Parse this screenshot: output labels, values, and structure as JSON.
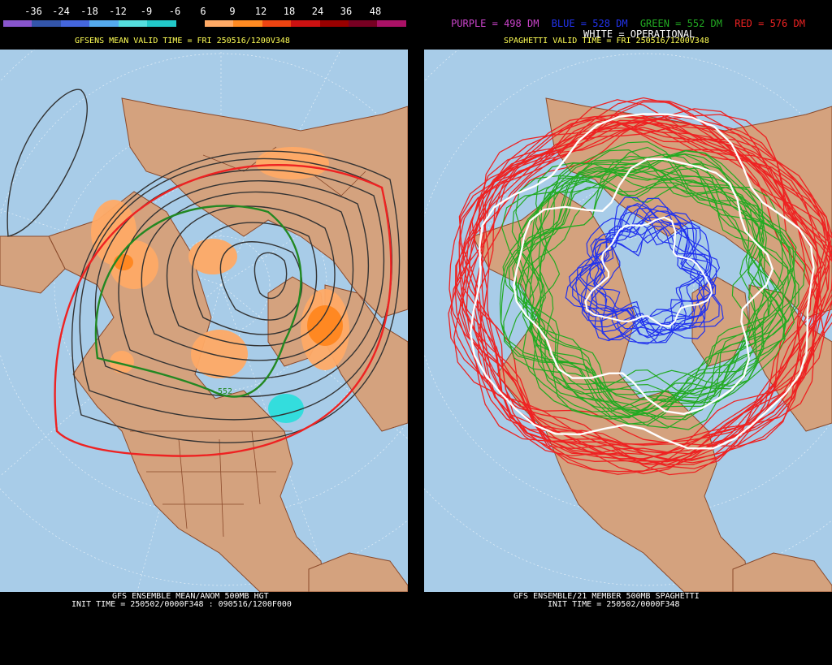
{
  "left_panel": {
    "legend": {
      "labels": [
        "-36",
        "-24",
        "-18",
        "-12",
        "-9",
        "-6",
        "6",
        "9",
        "12",
        "18",
        "24",
        "36",
        "48"
      ],
      "colors": [
        "#8855cc",
        "#3355aa",
        "#4466dd",
        "#55aaee",
        "#55dddd",
        "#22c8c8",
        "#000000",
        "#ffaa66",
        "#ff8a22",
        "#ee4411",
        "#cc1111",
        "#990000",
        "#770022",
        "#aa1166"
      ]
    },
    "valid_time": "GFSENS MEAN VALID TIME = FRI 250516/1200V348",
    "footer_line1": "GFS ENSEMBLE MEAN/ANOM 500MB HGT",
    "footer_line2": "INIT TIME = 250502/0000F348 : 090516/1200F000",
    "contour_label": "552"
  },
  "right_panel": {
    "title_items": [
      {
        "text": "PURPLE = 498 DM",
        "color": "#cc44cc"
      },
      {
        "text": "BLUE = 528 DM",
        "color": "#2233ee"
      },
      {
        "text": "GREEN = 552 DM",
        "color": "#22aa22"
      },
      {
        "text": "RED = 576 DM",
        "color": "#ee2222"
      }
    ],
    "operational_label": "WHITE = OPERATIONAL",
    "valid_time": "SPAGHETTI VALID TIME = FRI 250516/1200V348",
    "footer_line1": "GFS ENSEMBLE/21 MEMBER 500MB SPAGHETTI",
    "footer_line2": "INIT TIME = 250502/0000F348"
  },
  "colors": {
    "ocean": "#a8cce8",
    "land": "#d4a27e",
    "border": "#8b4a2b",
    "warm_anomaly": "#ffaa66",
    "strong_warm_anomaly": "#ff8822",
    "cold_anomaly": "#33dddd"
  }
}
